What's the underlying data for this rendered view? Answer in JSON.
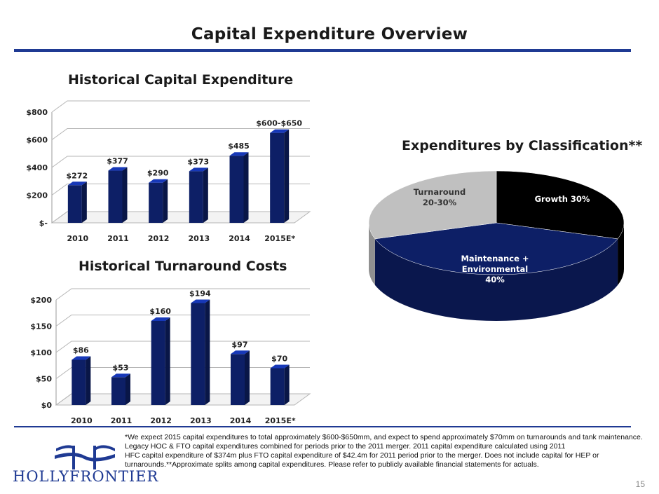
{
  "page": {
    "title": "Capital Expenditure Overview",
    "page_number": "15",
    "company_logo_text": "HOLLYFRONTIER",
    "footnote": [
      "*We expect 2015 capital expenditures to total approximately $600-$650mm, and expect to spend approximately $70mm on turnarounds and tank maintenance.",
      "Legacy HOC & FTO capital expenditures combined for periods prior to the 2011 merger. 2011 capital expenditure calculated using 2011",
      "HFC capital expenditure of $374m  plus FTO capital expenditure of $42.4m for 2011 period prior to the merger. Does not include capital for HEP or",
      "turnarounds.**Approximate splits among capital expenditures.  Please refer to publicly available financial statements for actuals."
    ]
  },
  "colors": {
    "accent": "#1f3a93",
    "bar": "#0d1f66",
    "pie_growth": "#000000",
    "pie_maintenance": "#0d1f66",
    "pie_turnaround": "#c0c0c0"
  },
  "chart_data": [
    {
      "type": "bar",
      "title": "Historical Capital Expenditure",
      "categories": [
        "2010",
        "2011",
        "2012",
        "2013",
        "2014",
        "2015E*"
      ],
      "values": [
        272,
        377,
        290,
        373,
        485,
        650
      ],
      "data_labels": [
        "$272",
        "$377",
        "$290",
        "$373",
        "$485",
        "$600-$650"
      ],
      "yticks": [
        "$-",
        "$200",
        "$400",
        "$600",
        "$800"
      ],
      "ylim": [
        0,
        800
      ],
      "grid": true,
      "legend": "none"
    },
    {
      "type": "bar",
      "title": "Historical Turnaround Costs",
      "categories": [
        "2010",
        "2011",
        "2012",
        "2013",
        "2014",
        "2015E*"
      ],
      "values": [
        86,
        53,
        160,
        194,
        97,
        70
      ],
      "data_labels": [
        "$86",
        "$53",
        "$160",
        "$194",
        "$97",
        "$70"
      ],
      "yticks": [
        "$0",
        "$50",
        "$100",
        "$150",
        "$200"
      ],
      "ylim": [
        0,
        200
      ],
      "grid": true,
      "legend": "none"
    },
    {
      "type": "pie",
      "title": "Expenditures by Classification**",
      "slices": [
        {
          "label": "Growth 30%",
          "value": 30
        },
        {
          "label": "Maintenance + Environmental 40%",
          "value": 40
        },
        {
          "label": "Turnaround 20-30%",
          "value": 30
        }
      ]
    }
  ]
}
